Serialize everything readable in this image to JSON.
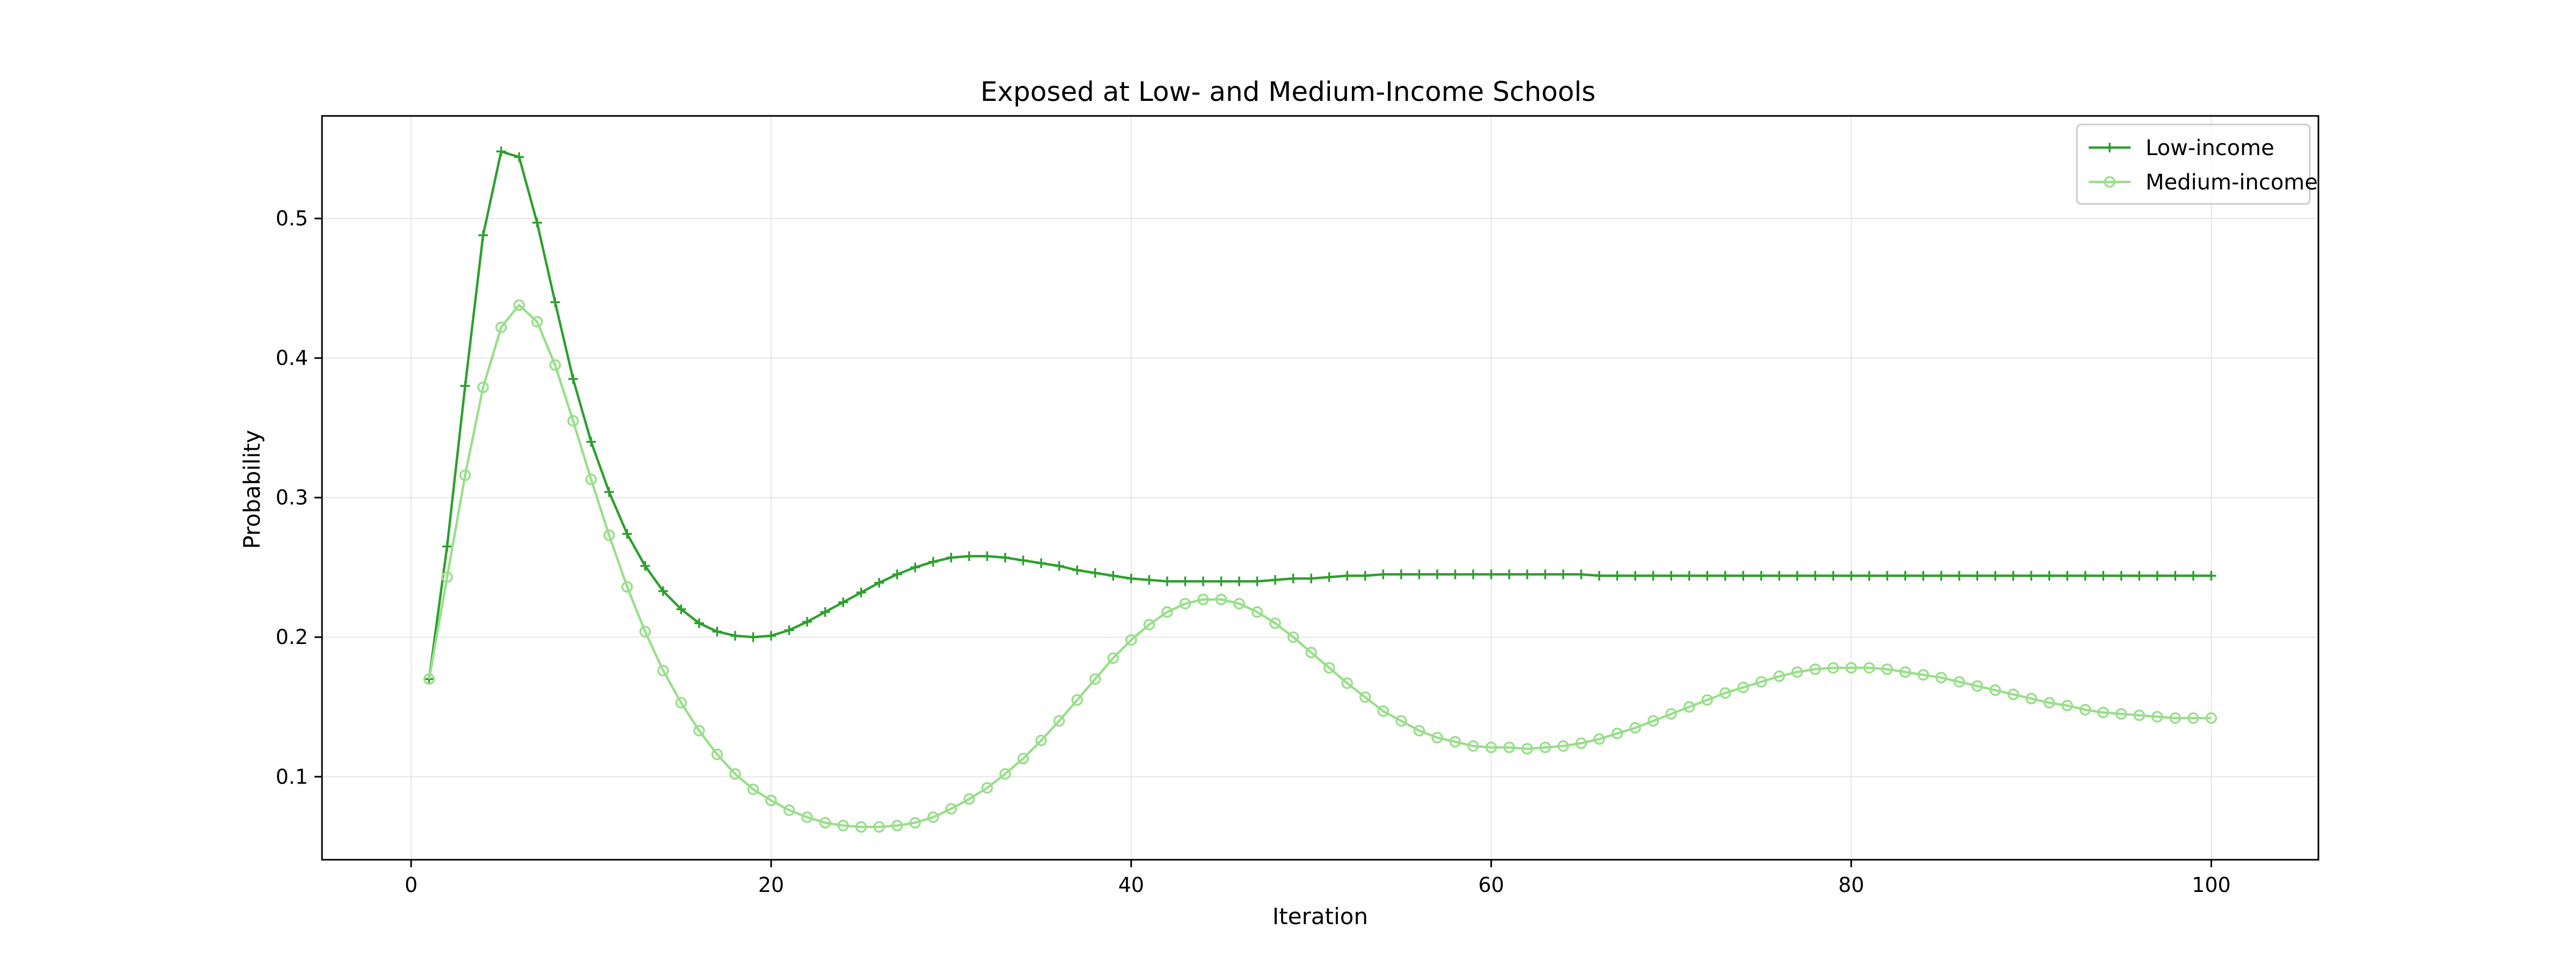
{
  "chart_data": {
    "type": "line",
    "title": "Exposed at Low- and Medium-Income Schools",
    "xlabel": "Iteration",
    "ylabel": "Probability",
    "xlim": [
      -4.95,
      105.95
    ],
    "ylim": [
      0.0405,
      0.5735
    ],
    "xticks": [
      0,
      20,
      40,
      60,
      80,
      100
    ],
    "xtick_labels": [
      "0",
      "20",
      "40",
      "60",
      "80",
      "100"
    ],
    "yticks": [
      0.1,
      0.2,
      0.3,
      0.4,
      0.5
    ],
    "ytick_labels": [
      "0.1",
      "0.2",
      "0.3",
      "0.4",
      "0.5"
    ],
    "grid": true,
    "legend_position": "top-right",
    "x": [
      1,
      2,
      3,
      4,
      5,
      6,
      7,
      8,
      9,
      10,
      11,
      12,
      13,
      14,
      15,
      16,
      17,
      18,
      19,
      20,
      21,
      22,
      23,
      24,
      25,
      26,
      27,
      28,
      29,
      30,
      31,
      32,
      33,
      34,
      35,
      36,
      37,
      38,
      39,
      40,
      41,
      42,
      43,
      44,
      45,
      46,
      47,
      48,
      49,
      50,
      51,
      52,
      53,
      54,
      55,
      56,
      57,
      58,
      59,
      60,
      61,
      62,
      63,
      64,
      65,
      66,
      67,
      68,
      69,
      70,
      71,
      72,
      73,
      74,
      75,
      76,
      77,
      78,
      79,
      80,
      81,
      82,
      83,
      84,
      85,
      86,
      87,
      88,
      89,
      90,
      91,
      92,
      93,
      94,
      95,
      96,
      97,
      98,
      99,
      100
    ],
    "series": [
      {
        "name": "Low-income",
        "color": "#2ca02c",
        "marker": "plus",
        "values": [
          0.17,
          0.265,
          0.38,
          0.488,
          0.548,
          0.544,
          0.497,
          0.44,
          0.385,
          0.34,
          0.304,
          0.274,
          0.251,
          0.233,
          0.22,
          0.21,
          0.204,
          0.201,
          0.2,
          0.201,
          0.205,
          0.211,
          0.218,
          0.225,
          0.232,
          0.239,
          0.245,
          0.25,
          0.254,
          0.257,
          0.258,
          0.258,
          0.257,
          0.255,
          0.253,
          0.251,
          0.248,
          0.246,
          0.244,
          0.242,
          0.241,
          0.24,
          0.24,
          0.24,
          0.24,
          0.24,
          0.24,
          0.241,
          0.242,
          0.242,
          0.243,
          0.244,
          0.244,
          0.245,
          0.245,
          0.245,
          0.245,
          0.245,
          0.245,
          0.245,
          0.245,
          0.245,
          0.245,
          0.245,
          0.245,
          0.244,
          0.244,
          0.244,
          0.244,
          0.244,
          0.244,
          0.244,
          0.244,
          0.244,
          0.244,
          0.244,
          0.244,
          0.244,
          0.244,
          0.244,
          0.244,
          0.244,
          0.244,
          0.244,
          0.244,
          0.244,
          0.244,
          0.244,
          0.244,
          0.244,
          0.244,
          0.244,
          0.244,
          0.244,
          0.244,
          0.244,
          0.244,
          0.244,
          0.244,
          0.244
        ]
      },
      {
        "name": "Medium-income",
        "color": "#98df8a",
        "marker": "circle",
        "values": [
          0.17,
          0.243,
          0.316,
          0.379,
          0.422,
          0.438,
          0.426,
          0.395,
          0.355,
          0.313,
          0.273,
          0.236,
          0.204,
          0.176,
          0.153,
          0.133,
          0.116,
          0.102,
          0.091,
          0.083,
          0.076,
          0.071,
          0.067,
          0.065,
          0.064,
          0.064,
          0.065,
          0.067,
          0.071,
          0.077,
          0.084,
          0.092,
          0.102,
          0.113,
          0.126,
          0.14,
          0.155,
          0.17,
          0.185,
          0.198,
          0.209,
          0.218,
          0.224,
          0.227,
          0.227,
          0.224,
          0.218,
          0.21,
          0.2,
          0.189,
          0.178,
          0.167,
          0.157,
          0.147,
          0.14,
          0.133,
          0.128,
          0.125,
          0.122,
          0.121,
          0.121,
          0.12,
          0.121,
          0.122,
          0.124,
          0.127,
          0.131,
          0.135,
          0.14,
          0.145,
          0.15,
          0.155,
          0.16,
          0.164,
          0.168,
          0.172,
          0.175,
          0.177,
          0.178,
          0.178,
          0.178,
          0.177,
          0.175,
          0.173,
          0.171,
          0.168,
          0.165,
          0.162,
          0.159,
          0.156,
          0.153,
          0.151,
          0.148,
          0.146,
          0.145,
          0.144,
          0.143,
          0.142,
          0.142,
          0.142
        ]
      }
    ]
  }
}
